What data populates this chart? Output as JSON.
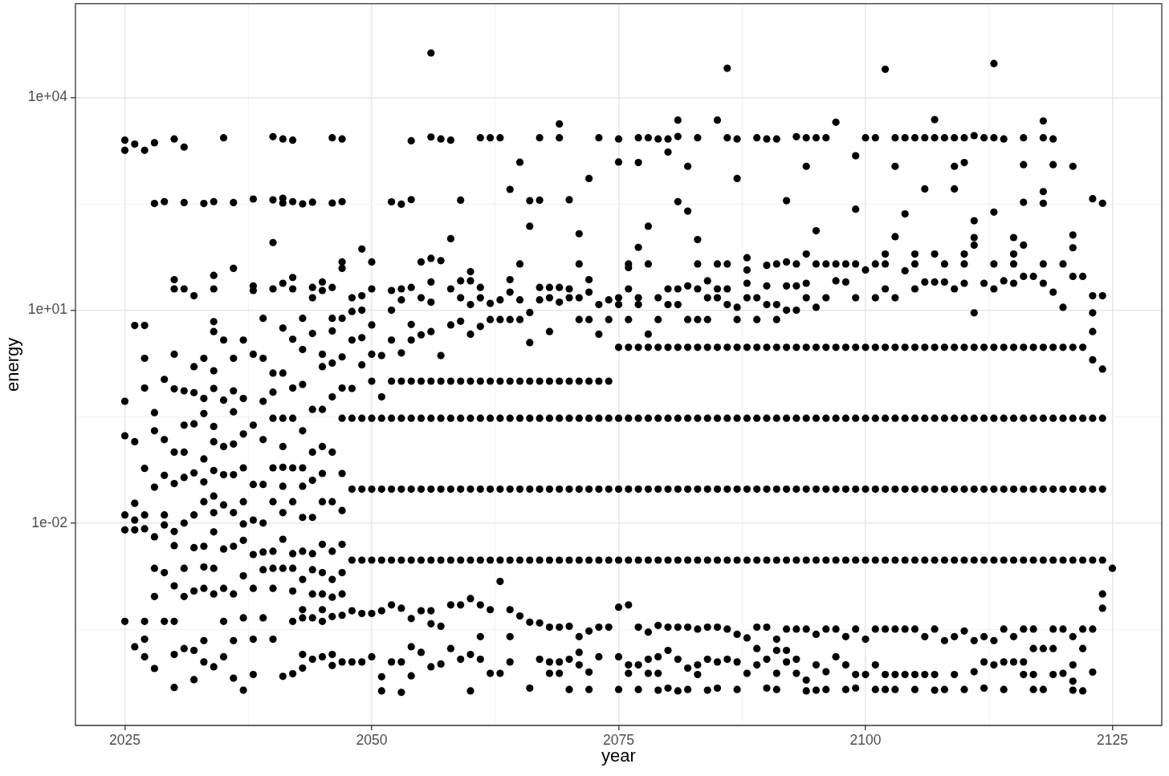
{
  "chart_data": {
    "type": "scatter",
    "xlabel": "year",
    "ylabel": "energy",
    "color": "#000000",
    "marker": "circle",
    "log": "y",
    "grid": true,
    "xlim": [
      2020,
      2130
    ],
    "xticks": [
      2025,
      {
        "value": 2037.5,
        "label": null
      },
      2050,
      {
        "value": 2062.5,
        "label": null
      },
      2075,
      {
        "value": 2087.5,
        "label": null
      },
      2100,
      {
        "value": 2112.5,
        "label": null
      },
      2125
    ],
    "ylim": [
      1.4e-05,
      210000
    ],
    "yticks": [
      {
        "value": 0.000316,
        "label": null
      },
      {
        "value": 0.01,
        "label": "1e-02"
      },
      {
        "value": 0.316,
        "label": null
      },
      {
        "value": 10,
        "label": "1e+01"
      },
      {
        "value": 316,
        "label": null
      },
      {
        "value": 10000,
        "label": "1e+04"
      }
    ],
    "x": [
      2025,
      2025,
      2025,
      2025,
      2025,
      2025,
      2025,
      2026,
      2026,
      2026,
      2026,
      2026,
      2026,
      2026,
      2027,
      2027,
      2027,
      2027,
      2027,
      2027,
      2027,
      2027,
      2027,
      2027,
      2028,
      2028,
      2028,
      2028,
      2028,
      2028,
      2028,
      2028,
      2028,
      2029,
      2029,
      2029,
      2029,
      2029,
      2029,
      2029,
      2029,
      2030,
      2030,
      2030,
      2030,
      2030,
      2030,
      2030,
      2030,
      2030,
      2030,
      2030,
      2030,
      2030,
      2031,
      2031,
      2031,
      2031,
      2031,
      2031,
      2031,
      2031,
      2031,
      2031,
      2031,
      2032,
      2032,
      2032,
      2032,
      2032,
      2032,
      2032,
      2032,
      2032,
      2032,
      2033,
      2033,
      2033,
      2033,
      2033,
      2033,
      2033,
      2033,
      2033,
      2033,
      2033,
      2033,
      2034,
      2034,
      2034,
      2034,
      2034,
      2034,
      2034,
      2034,
      2034,
      2034,
      2034,
      2034,
      2034,
      2034,
      2034,
      2034,
      2035,
      2035,
      2035,
      2035,
      2035,
      2035,
      2035,
      2035,
      2035,
      2035,
      2036,
      2036,
      2036,
      2036,
      2036,
      2036,
      2036,
      2036,
      2036,
      2036,
      2036,
      2036,
      2037,
      2037,
      2037,
      2037,
      2037,
      2037,
      2037,
      2037,
      2037,
      2037,
      2038,
      2038,
      2038,
      2038,
      2038,
      2038,
      2038,
      2038,
      2038,
      2038,
      2038,
      2039,
      2039,
      2039,
      2039,
      2039,
      2039,
      2039,
      2039,
      2039,
      2040,
      2040,
      2040,
      2040,
      2040,
      2040,
      2040,
      2040,
      2040,
      2040,
      2040,
      2040,
      2040,
      2041,
      2041,
      2041,
      2041,
      2041,
      2041,
      2041,
      2041,
      2041,
      2041,
      2041,
      2041,
      2041,
      2041,
      2042,
      2042,
      2042,
      2042,
      2042,
      2042,
      2042,
      2042,
      2042,
      2042,
      2042,
      2042,
      2042,
      2042,
      2043,
      2043,
      2043,
      2043,
      2043,
      2043,
      2043,
      2043,
      2043,
      2043,
      2043,
      2043,
      2043,
      2043,
      2044,
      2044,
      2044,
      2044,
      2044,
      2044,
      2044,
      2044,
      2044,
      2044,
      2044,
      2044,
      2044,
      2045,
      2045,
      2045,
      2045,
      2045,
      2045,
      2045,
      2045,
      2045,
      2045,
      2045,
      2045,
      2045,
      2045,
      2046,
      2046,
      2046,
      2046,
      2046,
      2046,
      2046,
      2046,
      2046,
      2046,
      2046,
      2046,
      2046,
      2046,
      2046,
      2047,
      2047,
      2047,
      2047,
      2047,
      2047,
      2047,
      2047,
      2047,
      2047,
      2047,
      2047,
      2047,
      2047,
      2047,
      2048,
      2048,
      2048,
      2048,
      2048,
      2048,
      2048,
      2048,
      2048,
      2049,
      2049,
      2049,
      2049,
      2049,
      2049,
      2049,
      2049,
      2049,
      2049,
      2050,
      2050,
      2050,
      2050,
      2050,
      2050,
      2050,
      2050,
      2050,
      2050,
      2051,
      2051,
      2051,
      2051,
      2051,
      2051,
      2051,
      2051,
      2052,
      2052,
      2052,
      2052,
      2052,
      2052,
      2052,
      2052,
      2052,
      2052,
      2053,
      2053,
      2053,
      2053,
      2053,
      2053,
      2053,
      2053,
      2053,
      2053,
      2053,
      2054,
      2054,
      2054,
      2054,
      2054,
      2054,
      2054,
      2054,
      2054,
      2054,
      2054,
      2054,
      2055,
      2055,
      2055,
      2055,
      2055,
      2055,
      2055,
      2055,
      2055,
      2056,
      2056,
      2056,
      2056,
      2056,
      2056,
      2056,
      2056,
      2056,
      2056,
      2056,
      2056,
      2056,
      2057,
      2057,
      2057,
      2057,
      2057,
      2057,
      2057,
      2057,
      2057,
      2058,
      2058,
      2058,
      2058,
      2058,
      2058,
      2058,
      2058,
      2058,
      2058,
      2059,
      2059,
      2059,
      2059,
      2059,
      2059,
      2059,
      2059,
      2059,
      2059,
      2060,
      2060,
      2060,
      2060,
      2060,
      2060,
      2060,
      2060,
      2060,
      2060,
      2060,
      2061,
      2061,
      2061,
      2061,
      2061,
      2061,
      2061,
      2061,
      2061,
      2061,
      2061,
      2062,
      2062,
      2062,
      2062,
      2062,
      2062,
      2062,
      2062,
      2062,
      2063,
      2063,
      2063,
      2063,
      2063,
      2063,
      2063,
      2063,
      2063,
      2064,
      2064,
      2064,
      2064,
      2064,
      2064,
      2064,
      2064,
      2064,
      2064,
      2064,
      2065,
      2065,
      2065,
      2065,
      2065,
      2065,
      2065,
      2065,
      2065,
      2066,
      2066,
      2066,
      2066,
      2066,
      2066,
      2066,
      2066,
      2066,
      2066,
      2067,
      2067,
      2067,
      2067,
      2067,
      2067,
      2067,
      2067,
      2067,
      2067,
      2068,
      2068,
      2068,
      2068,
      2068,
      2068,
      2068,
      2068,
      2068,
      2068,
      2069,
      2069,
      2069,
      2069,
      2069,
      2069,
      2069,
      2069,
      2069,
      2069,
      2069,
      2070,
      2070,
      2070,
      2070,
      2070,
      2070,
      2070,
      2070,
      2070,
      2070,
      2071,
      2071,
      2071,
      2071,
      2071,
      2071,
      2071,
      2071,
      2071,
      2071,
      2071,
      2072,
      2072,
      2072,
      2072,
      2072,
      2072,
      2072,
      2072,
      2072,
      2072,
      2072,
      2073,
      2073,
      2073,
      2073,
      2073,
      2073,
      2073,
      2073,
      2073,
      2074,
      2074,
      2074,
      2074,
      2074,
      2074,
      2074,
      2075,
      2075,
      2075,
      2075,
      2075,
      2075,
      2075,
      2075,
      2075,
      2075,
      2075,
      2076,
      2076,
      2076,
      2076,
      2076,
      2076,
      2076,
      2076,
      2076,
      2076,
      2076,
      2077,
      2077,
      2077,
      2077,
      2077,
      2077,
      2077,
      2077,
      2077,
      2077,
      2077,
      2077,
      2078,
      2078,
      2078,
      2078,
      2078,
      2078,
      2078,
      2078,
      2078,
      2078,
      2078,
      2079,
      2079,
      2079,
      2079,
      2079,
      2079,
      2079,
      2079,
      2079,
      2079,
      2079,
      2080,
      2080,
      2080,
      2080,
      2080,
      2080,
      2080,
      2080,
      2080,
      2080,
      2080,
      2081,
      2081,
      2081,
      2081,
      2081,
      2081,
      2081,
      2081,
      2081,
      2081,
      2081,
      2081,
      2082,
      2082,
      2082,
      2082,
      2082,
      2082,
      2082,
      2082,
      2082,
      2082,
      2082,
      2083,
      2083,
      2083,
      2083,
      2083,
      2083,
      2083,
      2083,
      2083,
      2083,
      2083,
      2083,
      2084,
      2084,
      2084,
      2084,
      2084,
      2084,
      2084,
      2084,
      2084,
      2084,
      2085,
      2085,
      2085,
      2085,
      2085,
      2085,
      2085,
      2085,
      2085,
      2085,
      2085,
      2086,
      2086,
      2086,
      2086,
      2086,
      2086,
      2086,
      2086,
      2086,
      2086,
      2086,
      2087,
      2087,
      2087,
      2087,
      2087,
      2087,
      2087,
      2087,
      2087,
      2087,
      2087,
      2088,
      2088,
      2088,
      2088,
      2088,
      2088,
      2088,
      2088,
      2088,
      2088,
      2089,
      2089,
      2089,
      2089,
      2089,
      2089,
      2089,
      2089,
      2089,
      2089,
      2090,
      2090,
      2090,
      2090,
      2090,
      2090,
      2090,
      2090,
      2090,
      2090,
      2090,
      2091,
      2091,
      2091,
      2091,
      2091,
      2091,
      2091,
      2091,
      2091,
      2091,
      2091,
      2091,
      2092,
      2092,
      2092,
      2092,
      2092,
      2092,
      2092,
      2092,
      2092,
      2092,
      2092,
      2093,
      2093,
      2093,
      2093,
      2093,
      2093,
      2093,
      2093,
      2093,
      2093,
      2093,
      2094,
      2094,
      2094,
      2094,
      2094,
      2094,
      2094,
      2094,
      2094,
      2094,
      2094,
      2094,
      2095,
      2095,
      2095,
      2095,
      2095,
      2095,
      2095,
      2095,
      2095,
      2095,
      2095,
      2096,
      2096,
      2096,
      2096,
      2096,
      2096,
      2096,
      2096,
      2096,
      2096,
      2097,
      2097,
      2097,
      2097,
      2097,
      2097,
      2097,
      2097,
      2097,
      2098,
      2098,
      2098,
      2098,
      2098,
      2098,
      2098,
      2098,
      2098,
      2099,
      2099,
      2099,
      2099,
      2099,
      2099,
      2099,
      2099,
      2099,
      2099,
      2099,
      2100,
      2100,
      2100,
      2100,
      2100,
      2100,
      2100,
      2100,
      2101,
      2101,
      2101,
      2101,
      2101,
      2101,
      2101,
      2101,
      2101,
      2101,
      2102,
      2102,
      2102,
      2102,
      2102,
      2102,
      2102,
      2102,
      2102,
      2102,
      2102,
      2103,
      2103,
      2103,
      2103,
      2103,
      2103,
      2103,
      2103,
      2103,
      2103,
      2103,
      2104,
      2104,
      2104,
      2104,
      2104,
      2104,
      2104,
      2104,
      2104,
      2105,
      2105,
      2105,
      2105,
      2105,
      2105,
      2105,
      2105,
      2105,
      2105,
      2105,
      2106,
      2106,
      2106,
      2106,
      2106,
      2106,
      2106,
      2106,
      2106,
      2107,
      2107,
      2107,
      2107,
      2107,
      2107,
      2107,
      2107,
      2107,
      2107,
      2107,
      2108,
      2108,
      2108,
      2108,
      2108,
      2108,
      2108,
      2108,
      2108,
      2109,
      2109,
      2109,
      2109,
      2109,
      2109,
      2109,
      2109,
      2109,
      2109,
      2110,
      2110,
      2110,
      2110,
      2110,
      2110,
      2110,
      2110,
      2110,
      2110,
      2110,
      2111,
      2111,
      2111,
      2111,
      2111,
      2111,
      2111,
      2111,
      2111,
      2111,
      2111,
      2112,
      2112,
      2112,
      2112,
      2112,
      2112,
      2112,
      2112,
      2112,
      2113,
      2113,
      2113,
      2113,
      2113,
      2113,
      2113,
      2113,
      2113,
      2113,
      2113,
      2114,
      2114,
      2114,
      2114,
      2114,
      2114,
      2114,
      2114,
      2114,
      2115,
      2115,
      2115,
      2115,
      2115,
      2115,
      2115,
      2115,
      2115,
      2115,
      2116,
      2116,
      2116,
      2116,
      2116,
      2116,
      2116,
      2116,
      2116,
      2116,
      2116,
      2116,
      2117,
      2117,
      2117,
      2117,
      2117,
      2117,
      2117,
      2117,
      2117,
      2118,
      2118,
      2118,
      2118,
      2118,
      2118,
      2118,
      2118,
      2118,
      2118,
      2118,
      2118,
      2119,
      2119,
      2119,
      2119,
      2119,
      2119,
      2119,
      2119,
      2119,
      2119,
      2120,
      2120,
      2120,
      2120,
      2120,
      2120,
      2120,
      2120,
      2121,
      2121,
      2121,
      2121,
      2121,
      2121,
      2121,
      2121,
      2121,
      2121,
      2121,
      2121,
      2122,
      2122,
      2122,
      2122,
      2122,
      2122,
      2122,
      2122,
      2123,
      2123,
      2123,
      2123,
      2123,
      2123,
      2123,
      2123,
      2123,
      2123,
      2124,
      2124,
      2124,
      2124,
      2124,
      2124,
      2124,
      2124,
      2125
    ],
    "values": [
      2500,
      1800,
      0.52,
      0.17,
      0.013,
      0.008,
      0.00041,
      2200,
      6.1,
      0.14,
      0.019,
      0.011,
      0.008,
      0.00018,
      1800,
      6.1,
      2.1,
      0.8,
      0.059,
      0.013,
      0.0083,
      0.00041,
      0.00023,
      0.00013,
      2300,
      320,
      0.36,
      0.2,
      0.032,
      0.0064,
      0.0023,
      0.00092,
      8.9e-05,
      340,
      1.06,
      0.15,
      0.047,
      0.013,
      0.0094,
      0.002,
      0.00041,
      2600,
      27,
      20,
      2.4,
      0.78,
      0.1,
      0.036,
      0.0076,
      0.0048,
      0.0013,
      0.00041,
      0.00014,
      4.8e-05,
      2000,
      330,
      20,
      0.73,
      0.24,
      0.1,
      0.044,
      0.01,
      0.0023,
      0.00092,
      0.00017,
      16,
      1.6,
      0.69,
      0.25,
      0.051,
      0.013,
      0.0045,
      0.0011,
      0.00016,
      6.2e-05,
      320,
      2.1,
      0.57,
      0.35,
      0.08,
      0.038,
      0.02,
      0.0047,
      0.0024,
      0.0012,
      0.00022,
      0.00011,
      340,
      31,
      20,
      6.9,
      5,
      1.4,
      0.79,
      0.23,
      0.14,
      0.055,
      0.024,
      0.014,
      0.0075,
      0.0023,
      0.001,
      9.4e-05,
      2700,
      3.8,
      0.54,
      0.12,
      0.048,
      0.018,
      0.0043,
      0.0012,
      0.00041,
      0.00013,
      330,
      39,
      2.1,
      0.73,
      0.37,
      0.13,
      0.048,
      0.014,
      0.0047,
      0.001,
      0.00022,
      6.5e-05,
      3.8,
      0.57,
      0.18,
      0.06,
      0.02,
      0.0097,
      0.0057,
      0.0018,
      0.00046,
      4.4e-05,
      370,
      22,
      19,
      2.4,
      0.24,
      0.035,
      0.011,
      0.0036,
      0.0012,
      0.00023,
      7.3e-05,
      7.7,
      2.1,
      0.52,
      0.15,
      0.035,
      0.01,
      0.0039,
      0.0022,
      0.00046,
      2800,
      360,
      90,
      20,
      1.3,
      0.7,
      0.3,
      0.06,
      0.02,
      0.004,
      0.0023,
      0.0012,
      0.00023,
      2600,
      380,
      325,
      24,
      5.6,
      1.3,
      0.3,
      0.12,
      0.061,
      0.033,
      0.014,
      0.0059,
      0.0023,
      6.9e-05,
      2500,
      340,
      29,
      20,
      3.9,
      0.8,
      0.3,
      0.06,
      0.02,
      0.0037,
      0.0023,
      0.0011,
      0.00041,
      7.5e-05,
      316,
      7.7,
      2.8,
      0.9,
      0.2,
      0.06,
      0.033,
      0.012,
      0.004,
      0.0016,
      0.0006,
      0.00046,
      0.00014,
      9e-05,
      334,
      21,
      15,
      4.7,
      0.4,
      0.1,
      0.04,
      0.012,
      0.0037,
      0.0022,
      0.001,
      0.00046,
      0.00012,
      25,
      19,
      2.4,
      1.6,
      0.4,
      0.12,
      0.05,
      0.02,
      0.005,
      0.002,
      0.001,
      0.0006,
      0.00041,
      0.00013,
      2700,
      325,
      21,
      7.7,
      5.1,
      1.8,
      0.6,
      0.1,
      0.02,
      0.004,
      0.0016,
      0.0009,
      0.00048,
      0.00014,
      9.8e-05,
      2600,
      340,
      48,
      39,
      7.7,
      2.2,
      0.8,
      0.3,
      0.05,
      0.015,
      0.005,
      0.002,
      0.001,
      0.0005,
      0.00011,
      15,
      9.6,
      3.8,
      0.79,
      0.3,
      0.03,
      0.003,
      0.00058,
      0.00011,
      73,
      16,
      10,
      4.1,
      1.7,
      0.3,
      0.03,
      0.003,
      0.00053,
      0.00011,
      48,
      20,
      6.2,
      2.4,
      1,
      0.3,
      0.03,
      0.003,
      0.00053,
      0.00013,
      2.3,
      0.6,
      0.3,
      0.03,
      0.003,
      0.00058,
      6.8e-05,
      4.3e-05,
      338,
      19,
      10,
      3.8,
      1,
      0.3,
      0.03,
      0.003,
      0.0007,
      0.00011,
      313,
      20,
      14,
      2.5,
      1,
      0.3,
      0.03,
      0.003,
      0.00063,
      0.00011,
      4.1e-05,
      2450,
      363,
      21,
      6.3,
      3.8,
      1,
      0.3,
      0.03,
      0.003,
      0.00045,
      0.00018,
      7e-05,
      48,
      15,
      4.5,
      1,
      0.3,
      0.03,
      0.003,
      0.00058,
      0.00015,
      42400,
      2770,
      54,
      25,
      13,
      5,
      1,
      0.3,
      0.03,
      0.003,
      0.00058,
      0.00038,
      9.4e-05,
      2600,
      50,
      2.3,
      1,
      0.3,
      0.03,
      0.003,
      0.00035,
      0.000103,
      2500,
      102,
      20,
      6.2,
      1,
      0.3,
      0.03,
      0.003,
      0.0007,
      0.00017,
      357,
      26,
      15,
      7,
      1,
      0.3,
      0.03,
      0.003,
      0.0007,
      0.00012,
      35,
      26,
      12,
      4.6,
      1,
      0.3,
      0.03,
      0.003,
      0.00086,
      0.00014,
      4.3e-05,
      2700,
      21,
      15,
      5.9,
      1,
      0.3,
      0.03,
      0.003,
      0.0007,
      0.00025,
      0.00012,
      2700,
      12.5,
      7.4,
      1,
      0.3,
      0.03,
      0.003,
      0.0006,
      7.6e-05,
      2700,
      14,
      7.4,
      1,
      0.3,
      0.03,
      0.003,
      0.0015,
      7.6e-05,
      506,
      27,
      18,
      7.4,
      1,
      0.3,
      0.03,
      0.003,
      0.0006,
      0.00025,
      0.00011,
      1220,
      45,
      14,
      7.4,
      1,
      0.3,
      0.03,
      0.003,
      0.00049,
      351,
      153,
      9.3,
      3.5,
      1,
      0.3,
      0.03,
      0.003,
      0.0004,
      4.7e-05,
      2700,
      357,
      21,
      14,
      1,
      0.3,
      0.03,
      0.003,
      0.00039,
      0.00012,
      21,
      15,
      5,
      1,
      0.3,
      0.03,
      0.003,
      0.00034,
      0.00011,
      7.6e-05,
      4240,
      2700,
      21,
      13,
      1,
      0.3,
      0.03,
      0.003,
      0.00034,
      0.00011,
      7.6e-05,
      361,
      20,
      15,
      1,
      0.3,
      0.03,
      0.003,
      0.00035,
      0.00012,
      4.5e-05,
      120,
      45,
      15,
      7.4,
      1,
      0.3,
      0.03,
      0.003,
      0.00025,
      0.00015,
      0.0001,
      720,
      27,
      18,
      7.4,
      1,
      0.3,
      0.03,
      0.003,
      0.0003,
      7.9e-05,
      4.5e-05,
      2700,
      12,
      4.6,
      1,
      0.3,
      0.03,
      0.003,
      0.00034,
      0.00013,
      14,
      7.4,
      1,
      0.3,
      0.03,
      0.003,
      0.00034,
      2600,
      1230,
      15,
      12,
      3,
      0.3,
      0.03,
      0.003,
      0.00065,
      0.00013,
      4.5e-05,
      45,
      40,
      20,
      7.4,
      3,
      0.3,
      0.03,
      0.003,
      0.0007,
      0.0001,
      7.6e-05,
      2700,
      1210,
      77,
      15,
      12,
      3,
      0.3,
      0.03,
      0.003,
      0.00034,
      0.0001,
      4.5e-05,
      2700,
      153,
      45,
      4.6,
      3,
      0.3,
      0.03,
      0.003,
      0.00029,
      0.00012,
      7.6e-05,
      2600,
      15,
      7.4,
      3,
      0.3,
      0.03,
      0.003,
      0.00036,
      0.00013,
      7.6e-05,
      4.4e-05,
      2600,
      1700,
      20,
      12,
      3,
      0.3,
      0.03,
      0.003,
      0.00034,
      0.00016,
      4.7e-05,
      4790,
      2820,
      339,
      20,
      12,
      3,
      0.3,
      0.03,
      0.003,
      0.00034,
      0.00012,
      4.3e-05,
      1070,
      250,
      22,
      7.4,
      3,
      0.3,
      0.03,
      0.003,
      0.00034,
      9e-05,
      4.5e-05,
      2700,
      99,
      45,
      20,
      7.4,
      3,
      0.3,
      0.03,
      0.003,
      0.00032,
      0.0001,
      7.3e-05,
      26,
      15,
      7.4,
      3,
      0.3,
      0.03,
      0.003,
      0.00034,
      0.00012,
      4.4e-05,
      4790,
      45,
      20,
      15,
      3,
      0.3,
      0.03,
      0.003,
      0.00034,
      0.00011,
      4.7e-05,
      25800,
      2700,
      45,
      20,
      12,
      3,
      0.3,
      0.03,
      0.003,
      0.00032,
      0.00012,
      2600,
      720,
      11,
      7.4,
      3,
      0.3,
      0.03,
      0.003,
      0.00027,
      0.00011,
      4.5e-05,
      55,
      37,
      24,
      15,
      3,
      0.3,
      0.03,
      0.003,
      0.00024,
      7.6e-05,
      2700,
      15,
      7.4,
      3,
      0.3,
      0.03,
      0.003,
      0.00034,
      0.00017,
      0.0001,
      2600,
      43,
      22,
      12,
      3,
      0.3,
      0.03,
      0.003,
      0.00034,
      0.00012,
      4.7e-05,
      2600,
      45,
      12,
      7.4,
      3,
      0.3,
      0.03,
      0.003,
      0.00023,
      0.00016,
      7.6e-05,
      4.5e-05,
      351,
      48,
      22,
      10,
      3,
      0.3,
      0.03,
      0.003,
      0.00032,
      0.00016,
      0.00011,
      2800,
      45,
      22,
      10,
      3,
      0.3,
      0.03,
      0.003,
      0.00032,
      0.00012,
      7.6e-05,
      2700,
      1070,
      62,
      24,
      15,
      3,
      0.3,
      0.03,
      0.003,
      0.00032,
      6.1e-05,
      4.3e-05,
      2700,
      132,
      45,
      11,
      3,
      0.3,
      0.03,
      0.003,
      0.00027,
      0.0001,
      4.4e-05,
      2700,
      45,
      15,
      3,
      0.3,
      0.03,
      0.003,
      0.00032,
      8e-05,
      4.5e-05,
      4470,
      45,
      26,
      3,
      0.3,
      0.03,
      0.003,
      0.00032,
      0.00013,
      45,
      25,
      3,
      0.3,
      0.03,
      0.003,
      0.00025,
      0.0001,
      4.5e-05,
      1510,
      266,
      45,
      15,
      3,
      0.3,
      0.03,
      0.003,
      0.00032,
      7.3e-05,
      4.7e-05,
      2700,
      37,
      3,
      0.3,
      0.03,
      0.003,
      0.00023,
      7.3e-05,
      2700,
      45,
      15,
      3,
      0.3,
      0.03,
      0.003,
      0.00032,
      0.0001,
      4.5e-05,
      25000,
      62,
      45,
      20,
      3,
      0.3,
      0.03,
      0.003,
      0.00032,
      7.3e-05,
      4.5e-05,
      2700,
      1070,
      109,
      15,
      3,
      0.3,
      0.03,
      0.003,
      0.00032,
      7.3e-05,
      4.5e-05,
      2700,
      228,
      36,
      3,
      0.3,
      0.03,
      0.003,
      0.00032,
      7.3e-05,
      2700,
      62,
      45,
      20,
      3,
      0.3,
      0.03,
      0.003,
      0.00032,
      7.3e-05,
      4.5e-05,
      2700,
      514,
      25,
      3,
      0.3,
      0.03,
      0.003,
      0.00025,
      7.3e-05,
      4870,
      2700,
      62,
      25,
      3,
      0.3,
      0.03,
      0.003,
      0.00032,
      7.3e-05,
      4.4e-05,
      2700,
      45,
      25,
      3,
      0.3,
      0.03,
      0.003,
      0.00022,
      4.5e-05,
      2700,
      1070,
      514,
      20,
      3,
      0.3,
      0.03,
      0.003,
      0.00025,
      7.3e-05,
      2700,
      1210,
      62,
      45,
      24,
      3,
      0.3,
      0.03,
      0.003,
      0.0003,
      4.5e-05,
      2900,
      183,
      106,
      83,
      9.2,
      3,
      0.3,
      0.03,
      0.003,
      0.00022,
      8e-05,
      2700,
      24,
      3,
      0.3,
      0.03,
      0.003,
      0.00025,
      0.00011,
      4.7e-05,
      30100,
      2700,
      242,
      45,
      20,
      3,
      0.3,
      0.03,
      0.003,
      0.00022,
      0.0001,
      2600,
      26,
      3,
      0.3,
      0.03,
      0.003,
      0.00032,
      0.00011,
      4.5e-05,
      106,
      62,
      45,
      24,
      3,
      0.3,
      0.03,
      0.003,
      0.00025,
      0.00011,
      2700,
      1130,
      333,
      83,
      30,
      3,
      0.3,
      0.03,
      0.003,
      0.00032,
      0.00011,
      7.3e-05,
      30,
      3,
      0.3,
      0.03,
      0.003,
      0.00032,
      0.00017,
      7.3e-05,
      4.5e-05,
      4660,
      2700,
      471,
      322,
      45,
      24,
      3,
      0.3,
      0.03,
      0.003,
      0.00017,
      4.5e-05,
      2600,
      1130,
      18,
      3,
      0.3,
      0.03,
      0.003,
      0.00032,
      0.00017,
      7.3e-05,
      45,
      11,
      3,
      0.3,
      0.03,
      0.003,
      0.00032,
      7.6e-05,
      1070,
      115,
      76,
      30,
      3,
      0.3,
      0.03,
      0.003,
      0.00025,
      0.0001,
      5.9e-05,
      4.4e-05,
      30,
      3,
      0.3,
      0.03,
      0.003,
      0.00032,
      0.00017,
      4.3e-05,
      373,
      16,
      9.2,
      5,
      2,
      0.3,
      0.03,
      0.003,
      0.00032,
      7.9e-05,
      322,
      16,
      1.48,
      0.3,
      0.03,
      0.003,
      0.001,
      0.00063,
      0.0023
    ]
  }
}
